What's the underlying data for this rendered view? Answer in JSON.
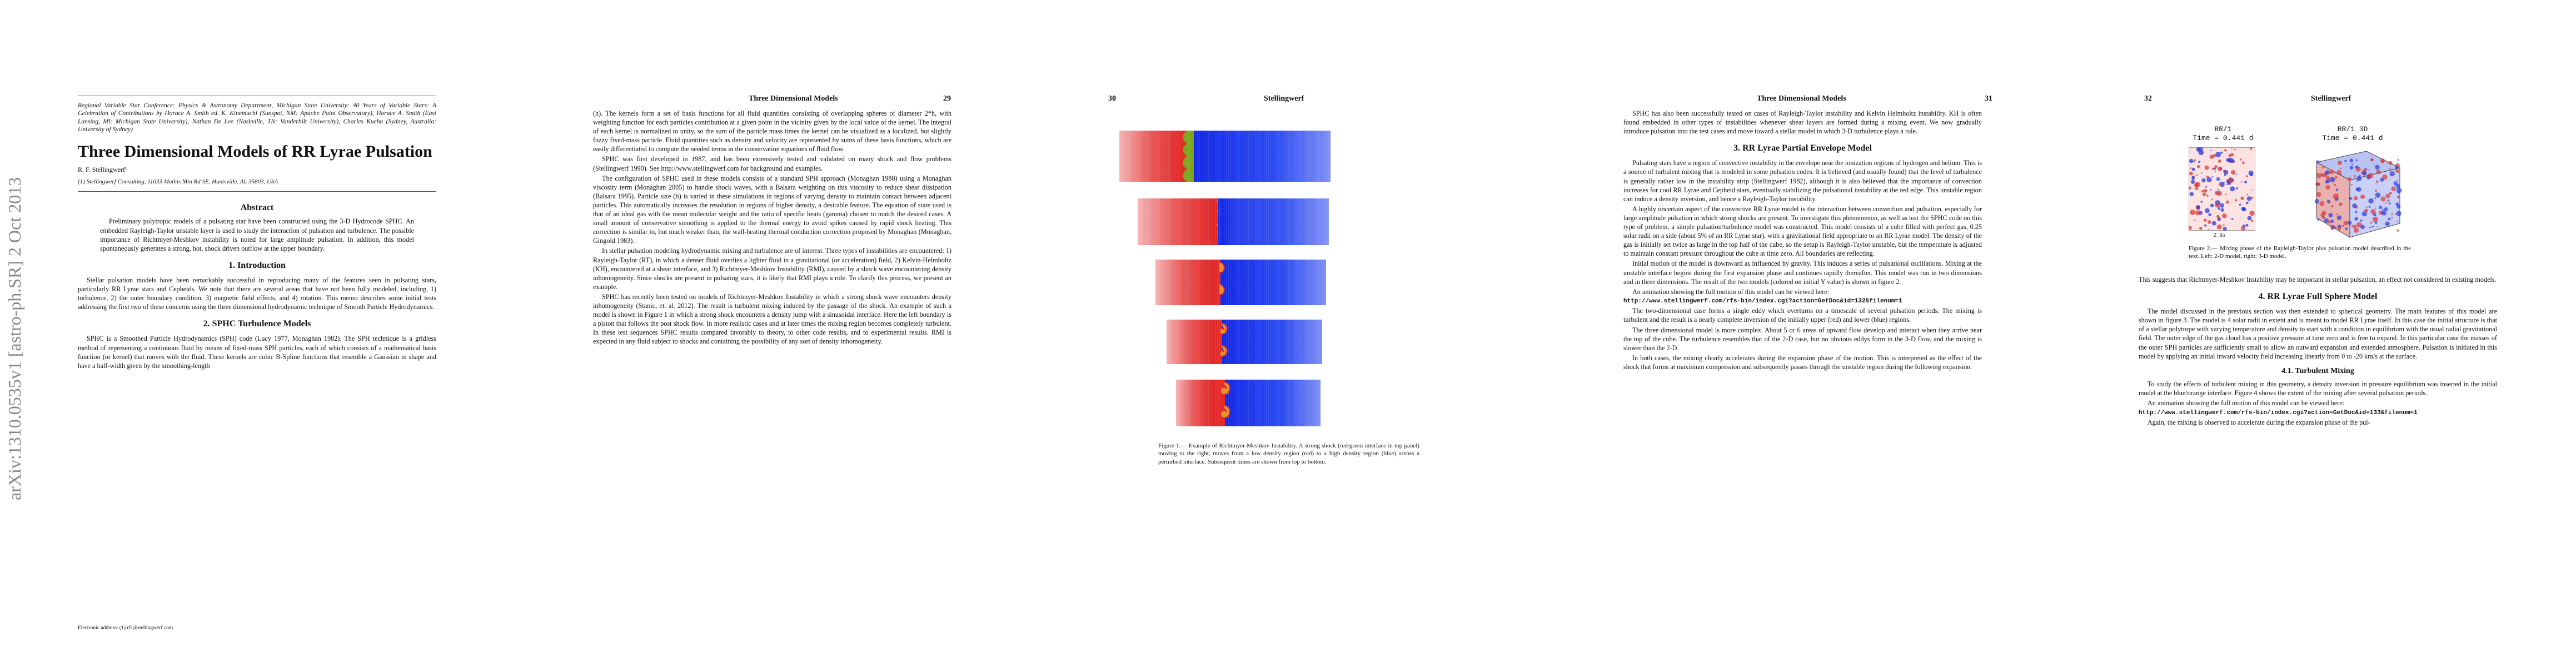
{
  "arxiv_stamp": "arXiv:1310.0535v1  [astro-ph.SR]  2 Oct 2013",
  "page1": {
    "conference": "Regional Variable Star Conference: Physics & Astronomy Department, Michigan State University: 40 Years of Variable Stars: A Celebration of Contributions by Horace A. Smith ed. K. Kinemuchi (Sunspot, NM: Apache Point Observatory), Horace A. Smith (East Lansing, MI: Michigan State University), Nathan De Lee (Nashville, TN: Vanderbilt University), Charles Kuehn (Sydney, Australia: University of Sydney)",
    "title": "Three Dimensional Models of RR Lyrae Pulsation",
    "author": "R. F. Stellingwerf¹",
    "affiliation": "(1) Stellingwerf Consulting, 11033 Mathis Mtn Rd SE, Huntsville, AL 35803, USA",
    "abstract_heading": "Abstract",
    "abstract": "Preliminary polytropic models of a pulsating star have been constructed using the 3-D Hydrocode SPHC. An embedded Rayleigh-Taylor unstable layer is used to study the interaction of pulsation and turbulence. The possible importance of Richtmyer-Meshkov instability is noted for large amplitude pulsation. In addition, this model spontaneously generates a strong, hot, shock driven outflow at the upper boundary.",
    "sec1_heading": "1.  Introduction",
    "sec1_text": "Stellar pulsation models have been remarkably successful in reproducing many of the features seen in pulsating stars, particularly RR Lyrae stars and Cepheids. We note that there are several areas that have not been fully modeled, including, 1) turbulence, 2) the outer boundary condition, 3) magnetic field effects, and 4) rotation. This memo describes some initial tests addressing the first two of these concerns using the three dimensional hydrodynamic technique of Smooth Particle Hydrodynamics.",
    "sec2_heading": "2.  SPHC Turbulence Models",
    "sec2_text": "SPHC is a Smoothed Particle Hydrodynamics (SPH) code (Lucy 1977, Monaghan 1982). The SPH technique is a gridless method of representing a continuous fluid by means of fixed-mass SPH particles, each of which consists of a mathematical basis function (or kernel) that moves with the fluid. These kernels are cubic B-Spline functions that resemble a Gaussian in shape and have a half-width given by the smoothing-length",
    "footnote": "Electronic address: (1) rfs@stellingwerf.com"
  },
  "page2": {
    "running_head": "Three Dimensional Models",
    "page_number": "29",
    "p1": "(h). The kernels form a set of basis functions for all fluid quantities consisting of overlapping spheres of diameter 2*h, with weighting function for each particles contribution at a given point in the vicinity given by the local value of the kernel. The integral of each kernel is normalized to unity, so the sum of the particle mass times the kernel can be visualized as a localized, but slightly fuzzy fixed-mass particle. Fluid quantities such as density and velocity are represented by sums of these basis functions, which are easily differentiated to compute the needed terms in the conservation equations of fluid flow.",
    "p2": "SPHC was first developed in 1987, and has been extensively tested and validated on many shock and flow problems (Stellingwerf 1990). See http://www.stellingwerf.com for background and examples.",
    "p3": "The configuration of SPHC used in these models consists of a standard SPH approach (Monaghan 1988) using a Monaghan viscosity term (Monaghan 2005) to handle shock waves, with a Balsara weighting on this viscosity to reduce shear dissipation (Balsara 1995). Particle size (h) is varied in these simulations in regions of varying density to maintain contact between adjacent particles. This automatically increases the resolution in regions of higher density, a desirable feature. The equation of state used is that of an ideal gas with the mean molecular weight and the ratio of specific heats (gamma) chosen to match the desired cases. A small amount of conservative smoothing is applied to the thermal energy to avoid spikes caused by rapid shock heating. This correction is similar to, but much weaker than, the wall-heating thermal conduction correction proposed by Monaghan (Monaghan, Gingold 1983).",
    "p4": "In stellar pulsation modeling hydrodynamic mixing and turbulence are of interest. Three types of instabilities are encountered: 1) Rayleigh-Taylor (RT), in which a denser fluid overlies a lighter fluid in a gravitational (or acceleration) field, 2) Kelvin-Helmholtz (KH), encountered at a shear interface, and 3) Richtmyer-Meshkov Instability (RMI), caused by a shock wave encountering density inhomogeneity. Since shocks are present in pulsating stars, it is likely that RMI plays a role. To clarify this process, we present an example.",
    "p5": "SPHC has recently been tested on models of Richtmyer-Meshkov Instability in which a strong shock wave encounters density inhomogeneity (Stanic, et. al. 2012). The result is turbulent mixing induced by the passage of the shock. An example of such a model is shown in Figure 1 in which a strong shock encounters a density jump with a sinusoidal interface. Here the left boundary is a piston that follows the post shock flow. In more realistic cases and at later times the mixing region becomes completely turbulent. In these test sequences SPHC results compared favorably to theory, to other code results, and to experimental results. RMI is expected in any fluid subject to shocks and containing the possibility of any sort of density inhomogeneity."
  },
  "page3": {
    "page_number": "30",
    "running_head": "Stellingwerf",
    "figure_caption": "Figure 1.— Example of Richtmyer-Meshkov Instability. A strong shock (red/green interface in top panel) moving to the right, moves from a low density region (red) to a high density region (blue) across a perturbed interface. Subsequent times are shown from top to bottom."
  },
  "page4": {
    "running_head": "Three Dimensional Models",
    "page_number": "31",
    "p1": "SPHC has also been successfully tested on cases of Rayleigh-Taylor instability and Kelvin Helmholtz instability. KH is often found embedded in other types of instabilities whenever shear layers are formed during a mixing event. We now gradually introduce pulsation into the test cases and move toward a stellar model in which 3-D turbulence plays a role.",
    "sec3_heading": "3.  RR Lyrae Partial Envelope Model",
    "p2": "Pulsating stars have a region of convective instability in the envelope near the ionization regions of hydrogen and helium. This is a source of turbulent mixing that is modeled in some pulsation codes. It is believed (and usually found) that the level of turbulence is generally rather low in the instability strip (Stellingwerf 1982), although it is also believed that the importance of convection increases for cool RR Lyrae and Cepheid stars, eventually stabilizing the pulsational instability at the red edge. This unstable region can induce a density inversion, and hence a Rayleigh-Taylor instability.",
    "p3": "A highly uncertain aspect of the convective RR Lyrae model is the interaction between convection and pulsation, especially for large amplitude pulsation in which strong shocks are present. To investigate this phenomenon, as well as test the SPHC code on this type of problem, a simple pulsation/turbulence model was constructed. This model consists of a cube filled with perfect gas, 0.25 solar radii on a side (about 5% of an RR Lyrae star), with a gravitational field appropriate to an RR Lyrae model. The density of the gas is initially set twice as large in the top half of the cube, so the setup is Rayleigh-Taylor unstable, but the temperature is adjusted to maintain constant pressure throughout the cube at time zero. All boundaries are reflecting.",
    "p4": "Initial motion of the model is downward as influenced by gravity. This induces a series of pulsational oscillations. Mixing at the unstable interface begins during the first expansion phase and continues rapidly thereafter. This model was run in two dimensions and in three dimensions. The result of the two models (colored on initial Y value) is shown in figure 2.",
    "p5": "An animation showing the full motion of this model can be viewed here:",
    "url": "http://www.stellingwerf.com/rfs-bin/index.cgi?action=GetDoc&id=132&filenum=1",
    "p6": "The two-dimensional case forms a single eddy which overturns on a timescale of several pulsation periods. The mixing is turbulent and the result is a nearly complete inversion of the initially upper (red) and lower (blue) regions.",
    "p7": "The three dimensional model is more complex. About 5 or 6 areas of upward flow develop and interact when they arrive near the top of the cube. The turbulence resembles that of the 2-D case, but no obvious eddys form in the 3-D flow, and the mixing is slower than the 2-D.",
    "p8": "In both cases, the mixing clearly accelerates during the expansion phase of the motion. This is interpreted as the effect of the shock that forms at maximum compression and subsequently passes through the unstable region during the following expansion."
  },
  "page5": {
    "page_number": "32",
    "running_head": "Stellingwerf",
    "panel_left_title": "RR/1",
    "panel_left_time": "Time = 0.441 d",
    "panel_right_title": "RR/1_3D",
    "panel_right_time": "Time = 0.441 d",
    "panel_left_xlabel": "Z_Ro",
    "figure_caption": "Figure 2.— Mixing phase of the Rayleigh-Taylor plus pulsation model described in the text. Left: 2-D model, right: 3-D model.",
    "p1": "This suggests that Richtmyer-Meshkov Instability may be important in stellar pulsation, an effect not considered in existing models.",
    "sec4_heading": "4.  RR Lyrae Full Sphere Model",
    "p2": "The model discussed in the previous section was then extended to spherical geometry. The main features of this model are shown in figure 3. The model is 4 solar radii in extent and is meant to model RR Lyrae itself. In this case the initial structure is that of a stellar polytrope with varying temperature and density to start with a condition in equilibrium with the usual radial gravitational field. The outer edge of the gas cloud has a positive pressure at time zero and is free to expand. In this particular case the masses of the outer SPH particles are sufficiently small to allow an outward expansion and extended atmosphere. Pulsation is initiated in this model by applying an initial inward velocity field increasing linearly from 0 to -20 km/s at the surface.",
    "sub41_heading": "4.1.  Turbulent Mixing",
    "p3": "To study the effects of turbulent mixing in this geometry, a density inversion in pressure equilibrium was inserted in the initial model at the blue/orange interface. Figure 4 shows the extent of the mixing after several pulsation periods.",
    "p4": "An animation showing the full motion of this model can be viewed here:",
    "url": "http://www.stellingwerf.com/rfs-bin/index.cgi?action=GetDoc&id=133&filenum=1",
    "p5": "Again, the mixing is observed to accelerate during the expansion phase of the pul-"
  },
  "colors": {
    "red": "#e23a3a",
    "blue": "#1f2fe0",
    "green": "#7aa61a",
    "orange": "#e8902a"
  }
}
